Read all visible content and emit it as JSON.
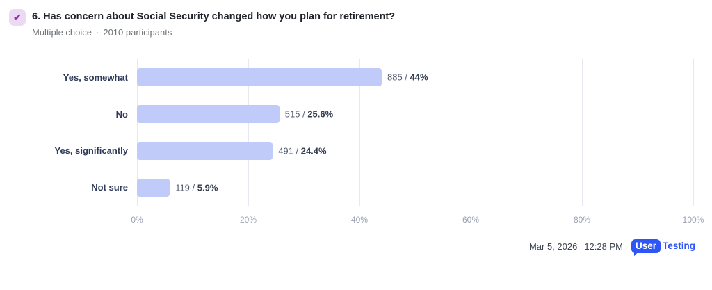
{
  "header": {
    "check_icon_glyph": "✔",
    "title": "6. Has concern about Social Security changed how you plan for retirement?",
    "question_type": "Multiple choice",
    "separator": "·",
    "participants": "2010 participants"
  },
  "chart_data": {
    "type": "bar",
    "orientation": "horizontal",
    "categories": [
      "Yes, somewhat",
      "No",
      "Yes, significantly",
      "Not sure"
    ],
    "values": [
      885,
      515,
      491,
      119
    ],
    "percentages": [
      44,
      25.6,
      24.4,
      5.9
    ],
    "value_labels": [
      "885 / 44%",
      "515 / 25.6%",
      "491 / 24.4%",
      "119 / 5.9%"
    ],
    "x_ticks": [
      "0%",
      "20%",
      "40%",
      "60%",
      "80%",
      "100%"
    ],
    "x_tick_positions": [
      0,
      20,
      40,
      60,
      80,
      100
    ],
    "xlim": [
      0,
      100
    ],
    "grid": true,
    "legend": "none",
    "bar_color": "#c0cbfa",
    "gridline_color": "#e5e8ee"
  },
  "footer": {
    "date": "Mar 5, 2026",
    "time": "12:28 PM",
    "logo_part1": "User",
    "logo_part2": "Testing"
  }
}
